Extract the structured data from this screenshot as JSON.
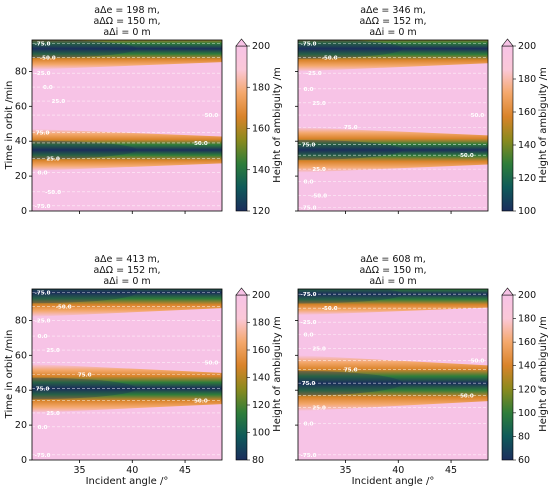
{
  "chart_data": [
    {
      "type": "heatmap",
      "title_lines": [
        "aΔe =  198 m,",
        "aΔΩ = 150 m,",
        "aΔi =  0 m"
      ],
      "xlabel": "",
      "ylabel": "Time in orbit /min",
      "xlim": [
        30.5,
        48.5
      ],
      "ylim": [
        0,
        98
      ],
      "x_ticks": [],
      "y_ticks": [
        "0",
        "20",
        "40",
        "60",
        "80"
      ],
      "colorbar": {
        "label": "Height of ambiguity /m",
        "min": 120,
        "max": 200,
        "ticks": [
          "120",
          "140",
          "160",
          "180",
          "200"
        ]
      },
      "dark_bands": [
        {
          "center_min": 35,
          "halfwidth_min": 12,
          "min_height_m": 122
        },
        {
          "center_min": 93,
          "halfwidth_min": 12,
          "min_height_m": 122
        }
      ],
      "contour_labels": [
        {
          "text": "-75.0",
          "x": 31.5,
          "y": 96
        },
        {
          "text": "-50.0",
          "x": 32,
          "y": 88
        },
        {
          "text": "-25.0",
          "x": 31.5,
          "y": 79
        },
        {
          "text": "0.0",
          "x": 32,
          "y": 71
        },
        {
          "text": "25.0",
          "x": 33,
          "y": 63
        },
        {
          "text": "50.0",
          "x": 47.5,
          "y": 55
        },
        {
          "text": "75.0",
          "x": 31.5,
          "y": 45
        },
        {
          "text": "50.0",
          "x": 46.5,
          "y": 39
        },
        {
          "text": "25.0",
          "x": 32.5,
          "y": 30
        },
        {
          "text": "0.0",
          "x": 31.5,
          "y": 22
        },
        {
          "text": "-50.0",
          "x": 32.5,
          "y": 11
        },
        {
          "text": "-75.0",
          "x": 31.5,
          "y": 3
        }
      ]
    },
    {
      "type": "heatmap",
      "title_lines": [
        "aΔe =  346 m,",
        "aΔΩ = 152 m,",
        "aΔi =  0 m"
      ],
      "xlabel": "",
      "ylabel": "",
      "xlim": [
        30.5,
        48.5
      ],
      "ylim": [
        0,
        98
      ],
      "x_ticks": [],
      "y_ticks": [],
      "colorbar": {
        "label": "Height of ambiguity /m",
        "min": 100,
        "max": 200,
        "ticks": [
          "100",
          "120",
          "140",
          "160",
          "180",
          "200"
        ]
      },
      "dark_bands": [
        {
          "center_min": 35,
          "halfwidth_min": 13,
          "min_height_m": 100
        },
        {
          "center_min": 93,
          "halfwidth_min": 13,
          "min_height_m": 100
        }
      ],
      "contour_labels": [
        {
          "text": "-75.0",
          "x": 31.5,
          "y": 96
        },
        {
          "text": "-50.0",
          "x": 33.5,
          "y": 88
        },
        {
          "text": "-25.0",
          "x": 32,
          "y": 79
        },
        {
          "text": "0.0",
          "x": 31.5,
          "y": 70
        },
        {
          "text": "25.0",
          "x": 32.5,
          "y": 62
        },
        {
          "text": "50.0",
          "x": 47.5,
          "y": 55
        },
        {
          "text": "75.0",
          "x": 35.5,
          "y": 48
        },
        {
          "text": "75.0",
          "x": 31.5,
          "y": 38
        },
        {
          "text": "50.0",
          "x": 46.5,
          "y": 32
        },
        {
          "text": "25.0",
          "x": 32.5,
          "y": 24
        },
        {
          "text": "0.0",
          "x": 31.5,
          "y": 17
        },
        {
          "text": "-50.0",
          "x": 32.5,
          "y": 9
        },
        {
          "text": "-75.0",
          "x": 31.5,
          "y": 2
        }
      ]
    },
    {
      "type": "heatmap",
      "title_lines": [
        "aΔe =  413 m,",
        "aΔΩ = 152 m,",
        "aΔi =  0 m"
      ],
      "xlabel": "Incident angle /°",
      "ylabel": "Time in orbit /min",
      "xlim": [
        30.5,
        48.5
      ],
      "ylim": [
        0,
        98
      ],
      "x_ticks": [
        "35",
        "40",
        "45"
      ],
      "y_ticks": [
        "0",
        "20",
        "40",
        "60",
        "80"
      ],
      "colorbar": {
        "label": "Height of ambiguity /m",
        "min": 80,
        "max": 200,
        "ticks": [
          "80",
          "100",
          "120",
          "140",
          "160",
          "180",
          "200"
        ]
      },
      "dark_bands": [
        {
          "center_min": 41,
          "halfwidth_min": 14,
          "min_height_m": 82
        },
        {
          "center_min": 96,
          "halfwidth_min": 14,
          "min_height_m": 82
        }
      ],
      "contour_labels": [
        {
          "text": "-75.0",
          "x": 31.5,
          "y": 96
        },
        {
          "text": "-50.0",
          "x": 33.5,
          "y": 88
        },
        {
          "text": "-25.0",
          "x": 31.5,
          "y": 80
        },
        {
          "text": "0.0",
          "x": 31.5,
          "y": 71
        },
        {
          "text": "25.0",
          "x": 32.5,
          "y": 63
        },
        {
          "text": "50.0",
          "x": 47.5,
          "y": 56
        },
        {
          "text": "75.0",
          "x": 35.5,
          "y": 49
        },
        {
          "text": "75.0",
          "x": 31.5,
          "y": 41
        },
        {
          "text": "50.0",
          "x": 46.5,
          "y": 34
        },
        {
          "text": "25.0",
          "x": 32.5,
          "y": 27
        },
        {
          "text": "0.0",
          "x": 31.5,
          "y": 19
        },
        {
          "text": "-75.0",
          "x": 31.5,
          "y": 3
        }
      ]
    },
    {
      "type": "heatmap",
      "title_lines": [
        "aΔe =  608 m,",
        "aΔΩ = 150 m,",
        "aΔi =  0 m"
      ],
      "xlabel": "Incident angle /°",
      "ylabel": "",
      "xlim": [
        30.5,
        48.5
      ],
      "ylim": [
        0,
        98
      ],
      "x_ticks": [
        "35",
        "40",
        "45"
      ],
      "y_ticks": [],
      "colorbar": {
        "label": "Height of ambiguity /m",
        "min": 60,
        "max": 200,
        "ticks": [
          "60",
          "80",
          "100",
          "120",
          "140",
          "160",
          "180",
          "200"
        ]
      },
      "dark_bands": [
        {
          "center_min": 44,
          "halfwidth_min": 16,
          "min_height_m": 60
        },
        {
          "center_min": 95,
          "halfwidth_min": 12,
          "min_height_m": 62
        }
      ],
      "contour_labels": [
        {
          "text": "-75.0",
          "x": 31.5,
          "y": 95
        },
        {
          "text": "-50.0",
          "x": 33.5,
          "y": 87
        },
        {
          "text": "-25.0",
          "x": 31.5,
          "y": 79
        },
        {
          "text": "0.0",
          "x": 31.5,
          "y": 72
        },
        {
          "text": "25.0",
          "x": 32.5,
          "y": 64
        },
        {
          "text": "50.0",
          "x": 47.5,
          "y": 57
        },
        {
          "text": "75.0",
          "x": 35.5,
          "y": 52
        },
        {
          "text": "75.0",
          "x": 31.5,
          "y": 44
        },
        {
          "text": "50.0",
          "x": 46.5,
          "y": 37
        },
        {
          "text": "25.0",
          "x": 32.5,
          "y": 30
        },
        {
          "text": "0.0",
          "x": 31.5,
          "y": 21
        },
        {
          "text": "-75.0",
          "x": 31.5,
          "y": 3
        }
      ]
    }
  ],
  "colors": {
    "colormap": [
      "#1b2d5c",
      "#0f5a5a",
      "#2e7d3a",
      "#8a8a1e",
      "#d9832a",
      "#f4a86c",
      "#fbc8d8",
      "#f7c3e6"
    ]
  }
}
